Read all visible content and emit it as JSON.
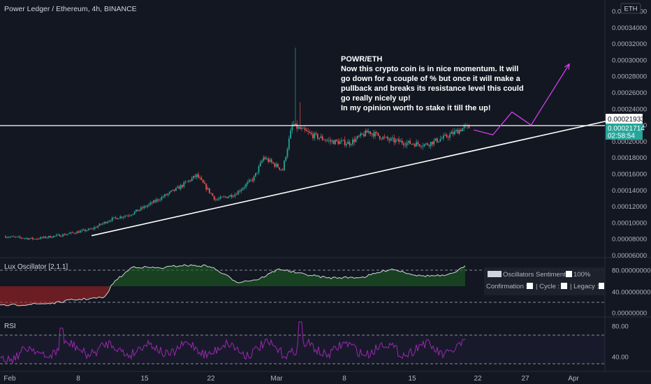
{
  "header": {
    "symbol_line": "Power Ledger / Ethereum, 4h, BINANCE",
    "currency_badge": "ETH"
  },
  "annotation": {
    "lines": [
      "POWR/ETH",
      "Now this crypto coin is in nice momentum. It will",
      "go down for a couple of % but once it will make a",
      "pullback and breaks its resistance level this could",
      "go really nicely up!",
      "In my opinion worth to stake it till the up!"
    ]
  },
  "price_labels": {
    "resistance": "0.00021933",
    "last": "0.00021714",
    "countdown": "02:58:54"
  },
  "indicators": {
    "lux": {
      "title": "Lux Oscillator [2.1.1]",
      "sentiment_label": "Oscillators Sentiment :",
      "sentiment_value": "100%",
      "confirmation_label": "Confirmation :",
      "cycle_label": "| Cycle :",
      "legacy_label": "| Legacy :",
      "y_ticks": [
        "80.00000000",
        "40.00000000",
        "0.00000000"
      ]
    },
    "rsi": {
      "title": "RSI",
      "y_ticks": [
        "80.00",
        "40.00"
      ]
    }
  },
  "colors": {
    "up": "#26a69a",
    "down": "#ef5350",
    "rsi": "#9c27b0",
    "projection": "#e040fb",
    "label_bg": "#26a69a"
  },
  "chart_data": {
    "type": "candlestick",
    "title": "Power Ledger / Ethereum, 4h, BINANCE",
    "y_ticks": [
      "0.00036000",
      "0.00034000",
      "0.00032000",
      "0.00030000",
      "0.00028000",
      "0.00026000",
      "0.00024000",
      "0.00022000",
      "0.00020000",
      "0.00018000",
      "0.00016000",
      "0.00014000",
      "0.00012000",
      "0.00010000",
      "0.00008000",
      "0.00006000"
    ],
    "x_ticks": [
      "Feb",
      "8",
      "15",
      "22",
      "Mar",
      "8",
      "15",
      "22",
      "27",
      "Apr"
    ],
    "ylim": [
      6e-05,
      0.00036
    ],
    "trend": [
      {
        "x": "Feb 1",
        "close": 8.3e-05
      },
      {
        "x": "Feb 4",
        "close": 8e-05
      },
      {
        "x": "Feb 7",
        "close": 8.5e-05
      },
      {
        "x": "Feb 10",
        "close": 9.2e-05
      },
      {
        "x": "Feb 12",
        "close": 0.000104
      },
      {
        "x": "Feb 14",
        "close": 0.00011
      },
      {
        "x": "Feb 16",
        "close": 0.000122
      },
      {
        "x": "Feb 19",
        "close": 0.000142
      },
      {
        "x": "Feb 21",
        "close": 0.000158
      },
      {
        "x": "Feb 23",
        "close": 0.000128
      },
      {
        "x": "Feb 25",
        "close": 0.000135
      },
      {
        "x": "Feb 27",
        "close": 0.000155
      },
      {
        "x": "Feb 28",
        "close": 0.00018
      },
      {
        "x": "Mar 2",
        "close": 0.000165
      },
      {
        "x": "Mar 3",
        "close": 0.00022
      },
      {
        "x": "Mar 5",
        "close": 0.000208
      },
      {
        "x": "Mar 7",
        "close": 0.0002
      },
      {
        "x": "Mar 9",
        "close": 0.000198
      },
      {
        "x": "Mar 11",
        "close": 0.000212
      },
      {
        "x": "Mar 13",
        "close": 0.000202
      },
      {
        "x": "Mar 15",
        "close": 0.000198
      },
      {
        "x": "Mar 17",
        "close": 0.000196
      },
      {
        "x": "Mar 19",
        "close": 0.000205
      },
      {
        "x": "Mar 21",
        "close": 0.000217
      }
    ],
    "spike_high": 0.000315,
    "resistance": 0.00021933,
    "support_line": [
      {
        "x": "Feb 10",
        "y": 8.4e-05
      },
      {
        "x": "Mar 31",
        "y": 0.000221
      }
    ],
    "projection": [
      {
        "x": "Mar 22",
        "y": 0.000214
      },
      {
        "x": "Mar 24",
        "y": 0.000208
      },
      {
        "x": "Mar 26",
        "y": 0.000236
      },
      {
        "x": "Mar 28",
        "y": 0.00022
      },
      {
        "x": "Apr 1",
        "y": 0.000295
      }
    ]
  }
}
